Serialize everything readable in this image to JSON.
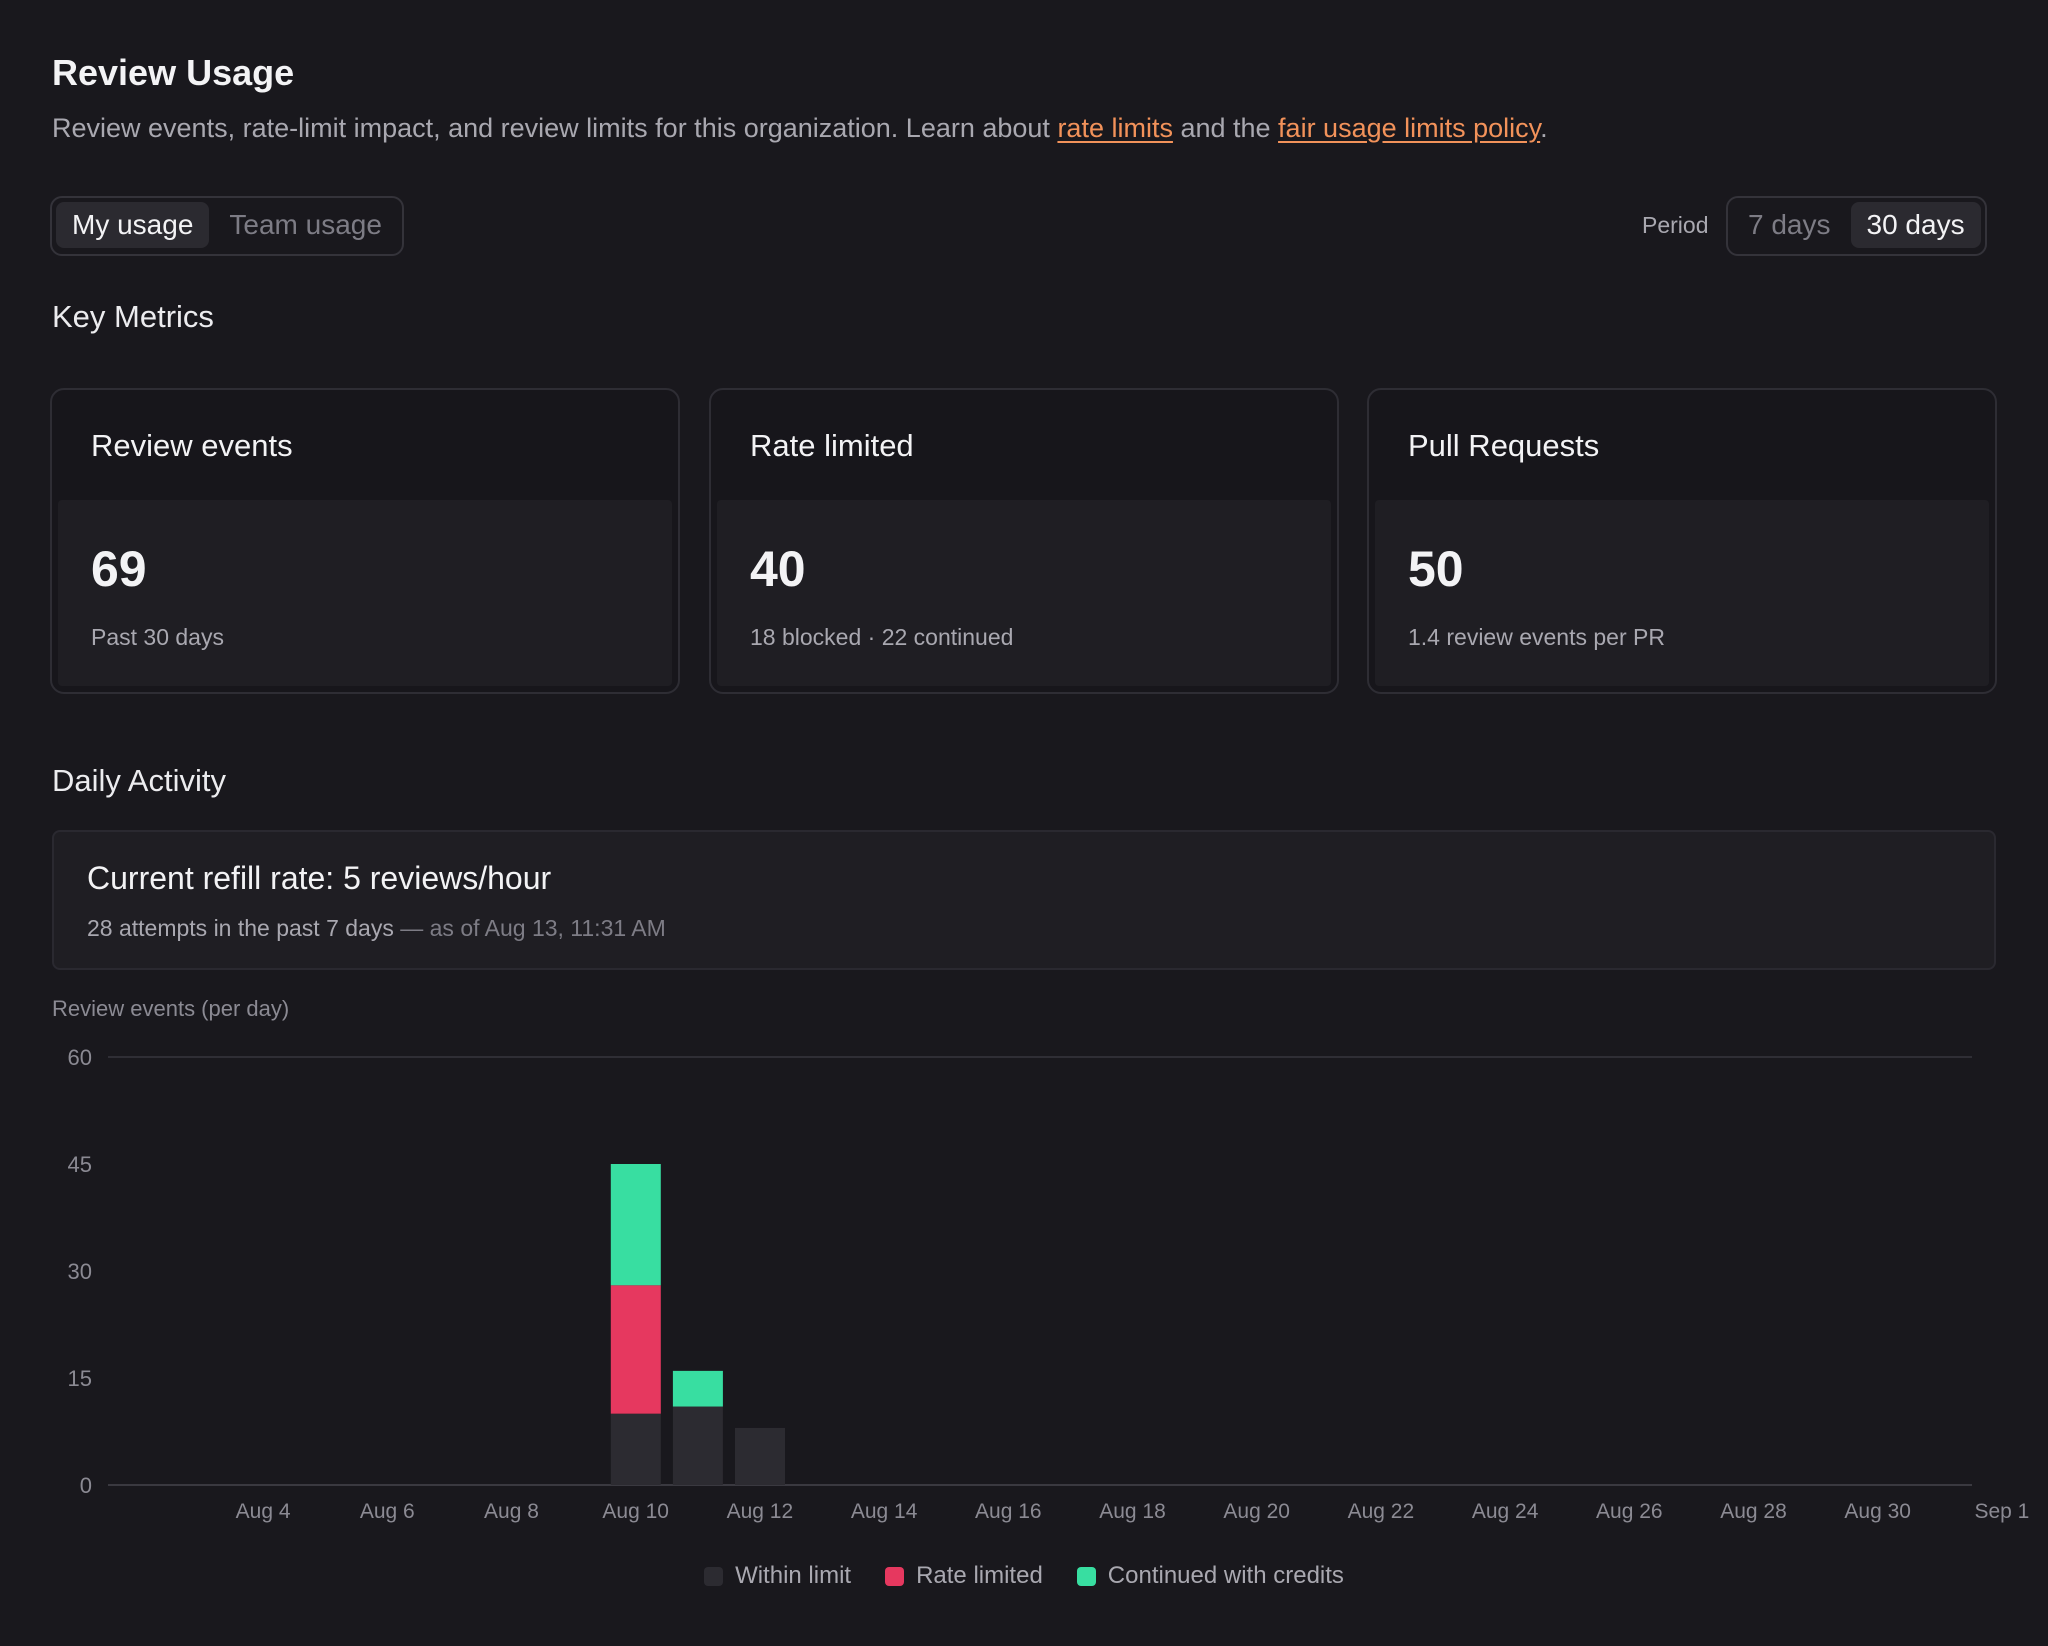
{
  "header": {
    "title": "Review Usage",
    "intro_prefix": "Review events, rate-limit impact, and review limits for this organization. Learn about ",
    "link_rate_limits": "rate limits",
    "intro_middle": " and the ",
    "link_fair_usage": "fair usage limits policy",
    "intro_suffix": "."
  },
  "usage_toggle": {
    "options": [
      "My usage",
      "Team usage"
    ],
    "selected": "My usage"
  },
  "period": {
    "label": "Period",
    "options": [
      "7 days",
      "30 days"
    ],
    "selected": "30 days"
  },
  "key_metrics": {
    "title": "Key Metrics",
    "cards": [
      {
        "title": "Review events",
        "value": "69",
        "sub": "Past 30 days"
      },
      {
        "title": "Rate limited",
        "value": "40",
        "sub": "18 blocked · 22 continued"
      },
      {
        "title": "Pull Requests",
        "value": "50",
        "sub": "1.4 review events per PR"
      }
    ]
  },
  "daily_activity": {
    "title": "Daily Activity",
    "refill_title": "Current refill rate: 5 reviews/hour",
    "refill_sub": "28 attempts in the past 7 days",
    "refill_asof": " — as of Aug 13, 11:31 AM"
  },
  "colors": {
    "within": "#2c2b31",
    "rate_limited": "#e6385f",
    "continued": "#38dea1",
    "accent_link": "#f2925a"
  },
  "chart_data": {
    "type": "bar",
    "stacked": true,
    "title": "Review events (per day)",
    "categories": [
      "Aug 3",
      "Aug 4",
      "Aug 5",
      "Aug 6",
      "Aug 7",
      "Aug 8",
      "Aug 9",
      "Aug 10",
      "Aug 11",
      "Aug 12",
      "Aug 13",
      "Aug 14",
      "Aug 15",
      "Aug 16",
      "Aug 17",
      "Aug 18",
      "Aug 19",
      "Aug 20",
      "Aug 21",
      "Aug 22",
      "Aug 23",
      "Aug 24",
      "Aug 25",
      "Aug 26",
      "Aug 27",
      "Aug 28",
      "Aug 29",
      "Aug 30",
      "Aug 31",
      "Sep 1"
    ],
    "x_tick_labels": [
      "Aug 4",
      "Aug 6",
      "Aug 8",
      "Aug 10",
      "Aug 12",
      "Aug 14",
      "Aug 16",
      "Aug 18",
      "Aug 20",
      "Aug 22",
      "Aug 24",
      "Aug 26",
      "Aug 28",
      "Aug 30",
      "Sep 1"
    ],
    "series": [
      {
        "name": "Within limit",
        "values": [
          0,
          0,
          0,
          0,
          0,
          0,
          0,
          0,
          10,
          11,
          8,
          0,
          0,
          0,
          0,
          0,
          0,
          0,
          0,
          0,
          0,
          0,
          0,
          0,
          0,
          0,
          0,
          0,
          0,
          0
        ]
      },
      {
        "name": "Rate limited",
        "values": [
          0,
          0,
          0,
          0,
          0,
          0,
          0,
          0,
          18,
          0,
          0,
          0,
          0,
          0,
          0,
          0,
          0,
          0,
          0,
          0,
          0,
          0,
          0,
          0,
          0,
          0,
          0,
          0,
          0,
          0
        ]
      },
      {
        "name": "Continued with credits",
        "values": [
          0,
          0,
          0,
          0,
          0,
          0,
          0,
          0,
          17,
          5,
          0,
          0,
          0,
          0,
          0,
          0,
          0,
          0,
          0,
          0,
          0,
          0,
          0,
          0,
          0,
          0,
          0,
          0,
          0,
          0
        ]
      }
    ],
    "y_ticks": [
      0,
      15,
      30,
      45,
      60
    ],
    "ylim": [
      0,
      60
    ],
    "grid": "top-line-only",
    "legend": "bottom-center"
  }
}
